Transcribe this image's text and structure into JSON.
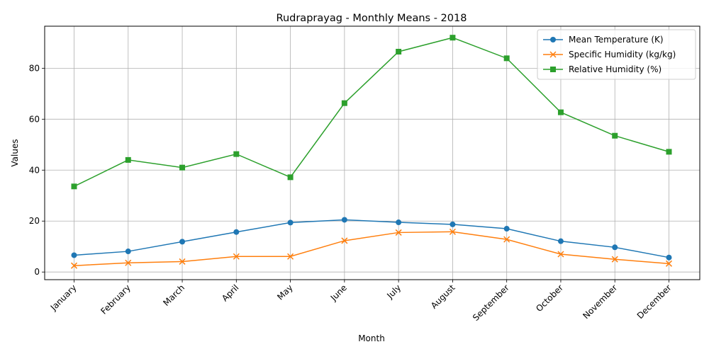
{
  "chart_data": {
    "type": "line",
    "title": "Rudraprayag - Monthly Means - 2018",
    "xlabel": "Month",
    "ylabel": "Values",
    "categories": [
      "January",
      "February",
      "March",
      "April",
      "May",
      "June",
      "July",
      "August",
      "September",
      "October",
      "November",
      "December"
    ],
    "ylim": [
      -3,
      96.5
    ],
    "yticks": [
      0,
      20,
      40,
      60,
      80
    ],
    "grid": true,
    "legend_position": "top-right",
    "series": [
      {
        "name": "Mean Temperature (K)",
        "color": "#1f77b4",
        "marker": "circle",
        "values": [
          6.6,
          8.1,
          11.9,
          15.7,
          19.4,
          20.5,
          19.5,
          18.7,
          17.0,
          12.1,
          9.7,
          5.7
        ]
      },
      {
        "name": "Specific Humidity (kg/kg)",
        "color": "#ff7f0e",
        "marker": "x",
        "values": [
          2.5,
          3.6,
          4.1,
          6.1,
          6.1,
          12.3,
          15.5,
          15.8,
          12.8,
          7.0,
          5.0,
          3.3
        ]
      },
      {
        "name": "Relative Humidity (%)",
        "color": "#2ca02c",
        "marker": "square",
        "values": [
          33.6,
          44.0,
          41.0,
          46.3,
          37.2,
          66.3,
          86.5,
          92.0,
          83.9,
          62.7,
          53.5,
          47.2
        ]
      }
    ]
  }
}
